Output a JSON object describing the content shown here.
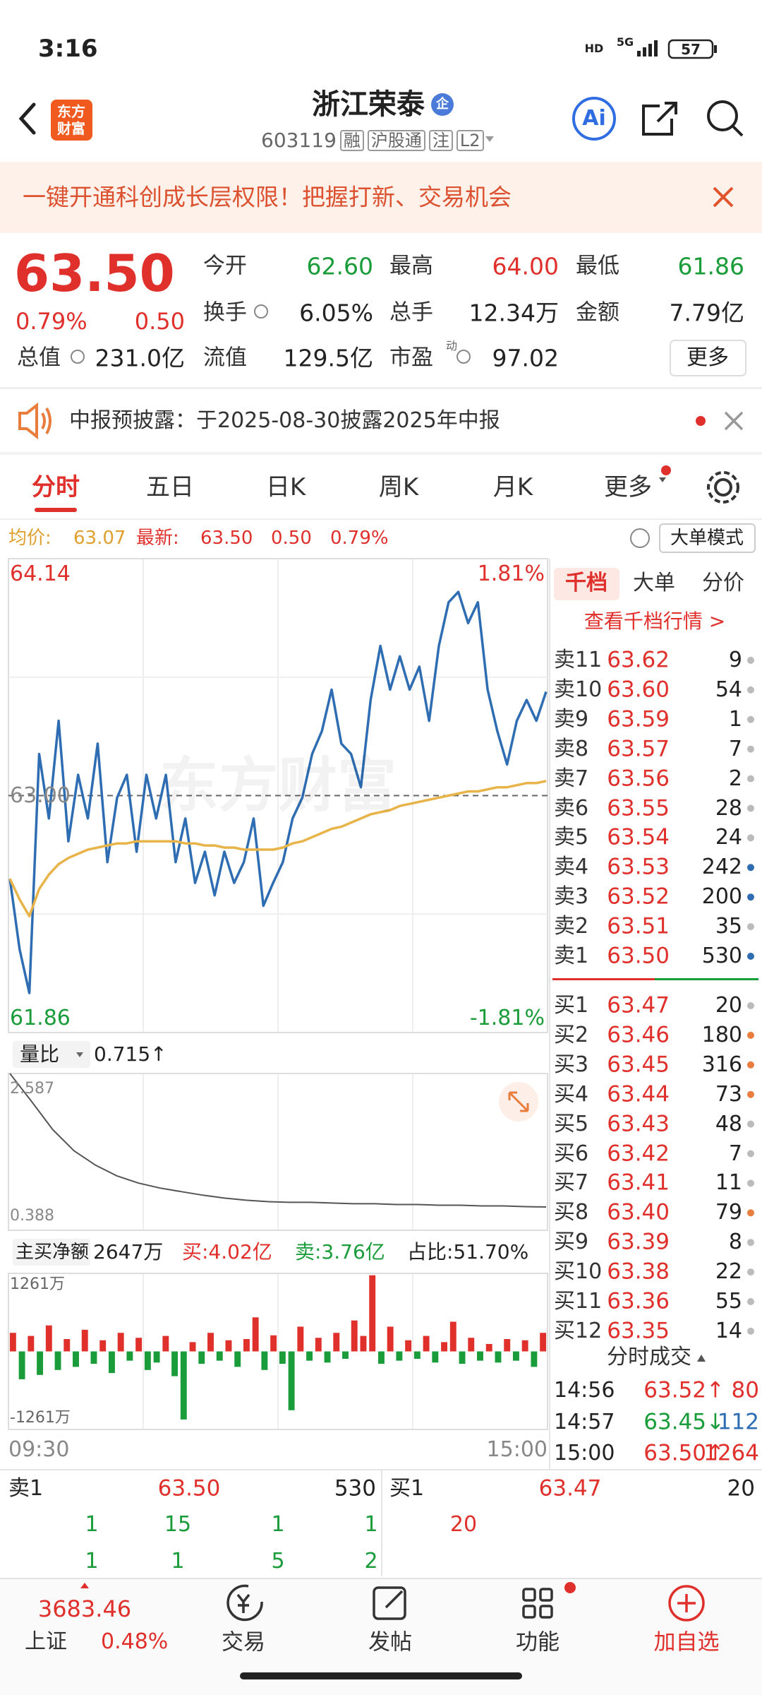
{
  "status_bar": {
    "time": "3:16",
    "hd": "HD",
    "network": "5G",
    "battery": "57"
  },
  "header": {
    "logo": [
      "东方",
      "财富"
    ],
    "title": "浙江荣泰",
    "badge": "企",
    "code": "603119",
    "tags": [
      "融",
      "沪股通",
      "注",
      "L2"
    ],
    "ai": "Ai"
  },
  "banner": {
    "text": "一键开通科创成长层权限！把握打新、交易机会"
  },
  "quote": {
    "price": "63.50",
    "change_pct": "0.79%",
    "change": "0.50",
    "stats": [
      {
        "label": "今开",
        "value": "62.60",
        "color": "#1a9c3a"
      },
      {
        "label": "最高",
        "value": "64.00",
        "color": "#e0302c"
      },
      {
        "label": "最低",
        "value": "61.86",
        "color": "#1a9c3a"
      },
      {
        "label": "换手",
        "value": "6.05%",
        "color": "#222222"
      },
      {
        "label": "总手",
        "value": "12.34万",
        "color": "#222222"
      },
      {
        "label": "金额",
        "value": "7.79亿",
        "color": "#222222"
      },
      {
        "label": "总值",
        "value": "231.0亿",
        "color": "#222222"
      },
      {
        "label": "流值",
        "value": "129.5亿",
        "color": "#222222"
      },
      {
        "label": "市盈",
        "value": "97.02",
        "color": "#222222"
      }
    ],
    "pe_tag": "动",
    "more": "更多"
  },
  "notice": {
    "text": "中报预披露：于2025-08-30披露2025年中报"
  },
  "tabs": {
    "items": [
      "分时",
      "五日",
      "日K",
      "周K",
      "月K",
      "更多"
    ],
    "active": 0
  },
  "chart_info": {
    "avg_label": "均价:",
    "avg": "63.07",
    "latest_label": "最新:",
    "latest": "63.50",
    "change": "0.50",
    "change_pct": "0.79%",
    "mode": "大单模式"
  },
  "chart_data": [
    {
      "type": "line",
      "watermark": "东方财富",
      "grid": true,
      "ylim": [
        61.86,
        64.14
      ],
      "yticks": [
        64.14,
        {
          "value": 63,
          "label": "63.00"
        },
        61.86
      ],
      "y2lim": [
        -1.81,
        1.81
      ],
      "y2ticks": [
        {
          "value": 1.81,
          "label": "1.81%"
        },
        {
          "value": -1.81,
          "label": "-1.81%"
        }
      ],
      "series": [
        {
          "color": "#2f6db3",
          "values": [
            62.6,
            62.26,
            62.05,
            63.2,
            62.89,
            63.36,
            62.78,
            63.1,
            62.89,
            63.25,
            62.68,
            62.99,
            63.1,
            62.73,
            63.1,
            62.89,
            63.1,
            62.68,
            62.89,
            62.58,
            62.73,
            62.52,
            62.73,
            62.58,
            62.68,
            62.89,
            62.47,
            62.58,
            62.68,
            62.89,
            62.99,
            63.2,
            63.31,
            63.51,
            63.25,
            63.2,
            63.04,
            63.46,
            63.72,
            63.51,
            63.67,
            63.51,
            63.62,
            63.36,
            63.72,
            63.93,
            63.98,
            63.83,
            63.93,
            63.51,
            63.31,
            63.15,
            63.36,
            63.46,
            63.36,
            63.5
          ]
        },
        {
          "color": "#e8b44a",
          "values": [
            62.6,
            62.5,
            62.42,
            62.55,
            62.62,
            62.67,
            62.7,
            62.72,
            62.74,
            62.75,
            62.76,
            62.77,
            62.77,
            62.78,
            62.78,
            62.78,
            62.78,
            62.78,
            62.77,
            62.77,
            62.76,
            62.76,
            62.75,
            62.75,
            62.74,
            62.74,
            62.74,
            62.74,
            62.75,
            62.77,
            62.78,
            62.8,
            62.82,
            62.84,
            62.85,
            62.87,
            62.89,
            62.91,
            62.92,
            62.93,
            62.95,
            62.96,
            62.97,
            62.98,
            62.99,
            63.0,
            63.01,
            63.02,
            63.02,
            63.03,
            63.04,
            63.04,
            63.05,
            63.06,
            63.06,
            63.07
          ]
        }
      ]
    },
    {
      "type": "line",
      "label": "量比",
      "value": "0.715↑",
      "grid": true,
      "ylim": [
        0.388,
        2.587
      ],
      "yticks": [
        2.587,
        0.388
      ],
      "series": [
        {
          "color": "#555555",
          "values": [
            2.587,
            2.2,
            1.8,
            1.5,
            1.3,
            1.15,
            1.05,
            0.98,
            0.93,
            0.88,
            0.84,
            0.81,
            0.79,
            0.78,
            0.78,
            0.77,
            0.76,
            0.76,
            0.75,
            0.75,
            0.74,
            0.74,
            0.73,
            0.73,
            0.72,
            0.715
          ]
        }
      ]
    },
    {
      "type": "bar",
      "label": "主买净额",
      "value": "2647万",
      "buy": "买:4.02亿",
      "sell": "卖:3.76亿",
      "ratio": "占比:51.70%",
      "grid": true,
      "ylim": [
        -1261,
        1261
      ],
      "yticks": [
        {
          "value": 1261,
          "label": "1261万"
        },
        {
          "value": -1261,
          "label": "-1261万"
        }
      ],
      "colors": {
        "up": "#e0302c",
        "down": "#1a9c3a"
      },
      "values": [
        300,
        -450,
        250,
        -380,
        420,
        -300,
        200,
        -250,
        350,
        -200,
        180,
        -350,
        300,
        -150,
        220,
        -300,
        -180,
        250,
        -400,
        -1100,
        150,
        -200,
        300,
        -150,
        180,
        -250,
        200,
        550,
        -300,
        260,
        -200,
        -950,
        400,
        -150,
        220,
        -180,
        300,
        -120,
        500,
        250,
        1230,
        -200,
        400,
        -150,
        180,
        -120,
        250,
        -180,
        150,
        480,
        -200,
        220,
        -150,
        120,
        -180,
        200,
        -150,
        180,
        -250,
        300
      ],
      "xlabels": [
        "09:30",
        "15:00"
      ]
    }
  ],
  "order_book": {
    "tabs": [
      "千档",
      "大单",
      "分价"
    ],
    "link": "查看千档行情 >",
    "asks": [
      {
        "label": "卖11",
        "price": "63.62",
        "volume": "9",
        "dot": "grey"
      },
      {
        "label": "卖10",
        "price": "63.60",
        "volume": "54",
        "dot": "grey"
      },
      {
        "label": "卖9",
        "price": "63.59",
        "volume": "1",
        "dot": "grey"
      },
      {
        "label": "卖8",
        "price": "63.57",
        "volume": "7",
        "dot": "grey"
      },
      {
        "label": "卖7",
        "price": "63.56",
        "volume": "2",
        "dot": "grey"
      },
      {
        "label": "卖6",
        "price": "63.55",
        "volume": "28",
        "dot": "grey"
      },
      {
        "label": "卖5",
        "price": "63.54",
        "volume": "24",
        "dot": "grey"
      },
      {
        "label": "卖4",
        "price": "63.53",
        "volume": "242",
        "dot": "blue"
      },
      {
        "label": "卖3",
        "price": "63.52",
        "volume": "200",
        "dot": "blue"
      },
      {
        "label": "卖2",
        "price": "63.51",
        "volume": "35",
        "dot": "grey"
      },
      {
        "label": "卖1",
        "price": "63.50",
        "volume": "530",
        "dot": "blue"
      }
    ],
    "bids": [
      {
        "label": "买1",
        "price": "63.47",
        "volume": "20",
        "dot": "grey"
      },
      {
        "label": "买2",
        "price": "63.46",
        "volume": "180",
        "dot": "orange"
      },
      {
        "label": "买3",
        "price": "63.45",
        "volume": "316",
        "dot": "orange"
      },
      {
        "label": "买4",
        "price": "63.44",
        "volume": "73",
        "dot": "orange"
      },
      {
        "label": "买5",
        "price": "63.43",
        "volume": "48",
        "dot": "grey"
      },
      {
        "label": "买6",
        "price": "63.42",
        "volume": "7",
        "dot": "grey"
      },
      {
        "label": "买7",
        "price": "63.41",
        "volume": "11",
        "dot": "grey"
      },
      {
        "label": "买8",
        "price": "63.40",
        "volume": "79",
        "dot": "orange"
      },
      {
        "label": "买9",
        "price": "63.39",
        "volume": "8",
        "dot": "grey"
      },
      {
        "label": "买10",
        "price": "63.38",
        "volume": "22",
        "dot": "grey"
      },
      {
        "label": "买11",
        "price": "63.36",
        "volume": "55",
        "dot": "grey"
      },
      {
        "label": "买12",
        "price": "63.35",
        "volume": "14",
        "dot": "grey"
      }
    ],
    "trades_title": "分时成交",
    "trades": [
      {
        "time": "14:56",
        "price": "63.52↑",
        "volume": "80",
        "side": "buy"
      },
      {
        "time": "14:57",
        "price": "63.45↓",
        "volume": "112",
        "side": "sell"
      },
      {
        "time": "15:00",
        "price": "63.50↑",
        "volume": "1264",
        "side": "buy"
      }
    ]
  },
  "summary": {
    "ask_label": "卖1",
    "ask_price": "63.50",
    "ask_volume": "530",
    "bid_label": "买1",
    "bid_price": "63.47",
    "bid_volume": "20",
    "ask_queue": [
      [
        "1",
        "15",
        "1",
        "1"
      ],
      [
        "1",
        "1",
        "5",
        "2"
      ]
    ],
    "bid_queue": [
      "20"
    ]
  },
  "bottom_nav": {
    "index_value": "3683.46",
    "index_name": "上证",
    "index_change": "0.48%",
    "items": [
      "交易",
      "发帖",
      "功能",
      "加自选"
    ]
  }
}
